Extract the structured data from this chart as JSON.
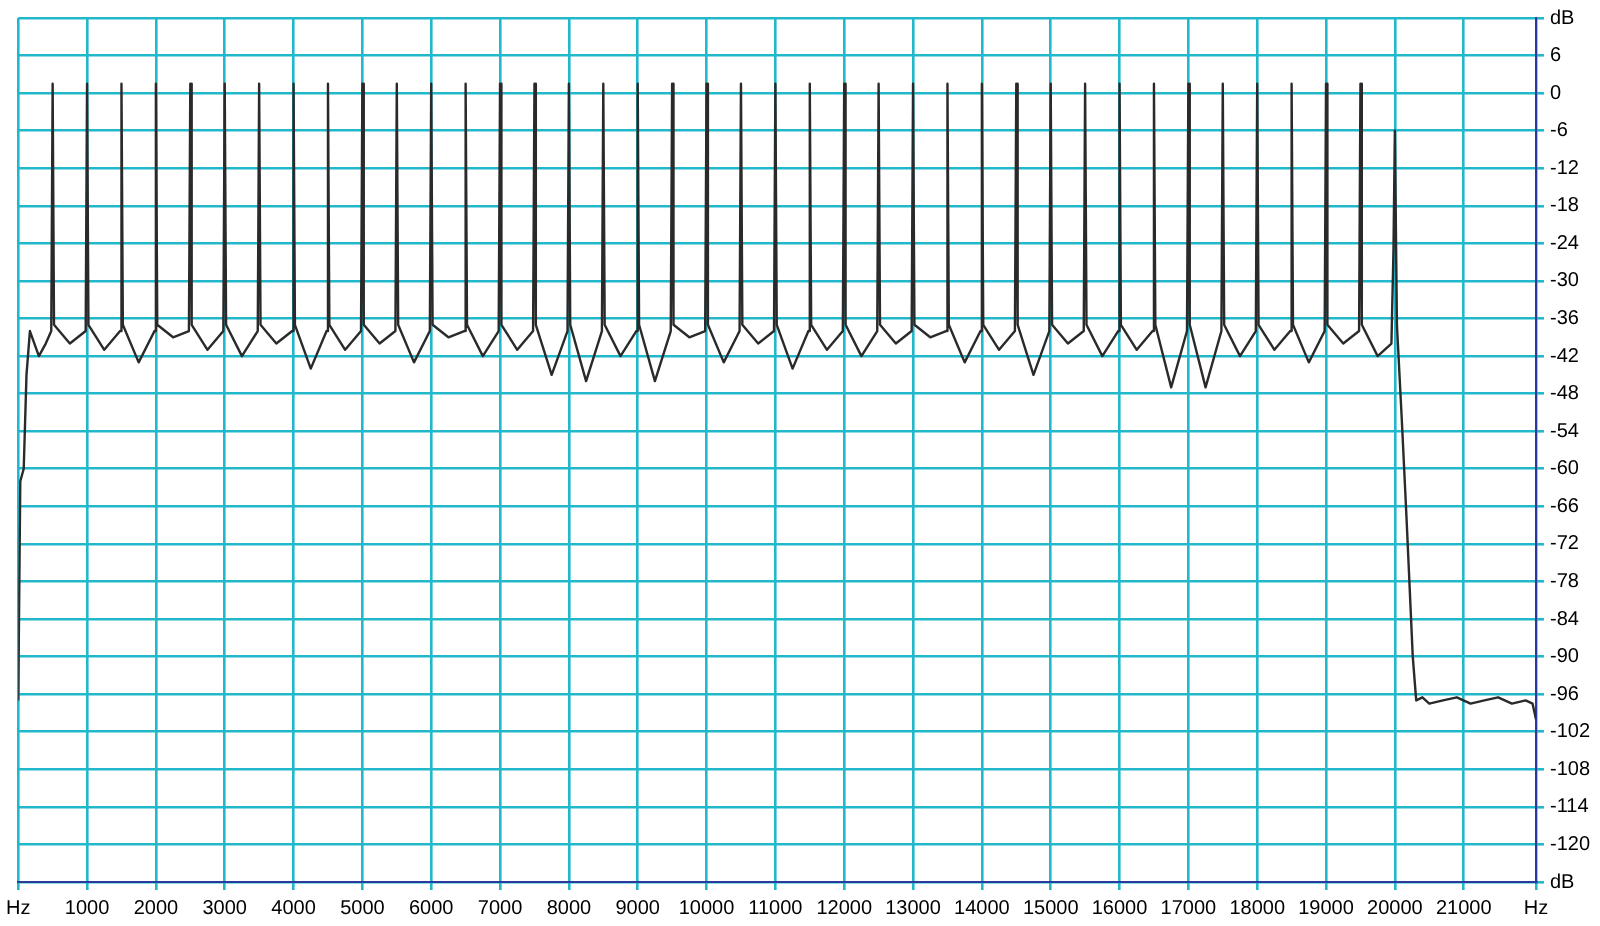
{
  "chart_data": {
    "type": "line",
    "xlim": [
      0,
      22050
    ],
    "ylim": [
      -126,
      12
    ],
    "xticks": [
      {
        "value": 0,
        "label": "Hz"
      },
      1000,
      2000,
      3000,
      4000,
      5000,
      6000,
      7000,
      8000,
      9000,
      10000,
      11000,
      12000,
      13000,
      14000,
      15000,
      16000,
      17000,
      18000,
      19000,
      20000,
      21000,
      {
        "value": 22050,
        "label": "Hz"
      }
    ],
    "yticks": [
      {
        "value": 12,
        "label": "dB"
      },
      6,
      0,
      -6,
      -12,
      -18,
      -24,
      -30,
      -36,
      -42,
      -48,
      -54,
      -60,
      -66,
      -72,
      -78,
      -84,
      -90,
      -96,
      -102,
      -108,
      -114,
      -120,
      {
        "value": -126,
        "label": "dB"
      }
    ],
    "grid": true,
    "legend": false,
    "marker": "none",
    "line_style": "solid",
    "series": [
      {
        "color": "#2a2a2a",
        "x": [
          0,
          30,
          80,
          120,
          170,
          300,
          400,
          480,
          500,
          520,
          750,
          980,
          1000,
          1020,
          1250,
          1480,
          1500,
          1520,
          1750,
          1980,
          2000,
          2020,
          2250,
          2480,
          2500,
          2520,
          2750,
          2980,
          3000,
          3020,
          3250,
          3480,
          3500,
          3520,
          3750,
          3980,
          4000,
          4020,
          4250,
          4480,
          4500,
          4520,
          4750,
          4980,
          5000,
          5020,
          5250,
          5480,
          5500,
          5520,
          5750,
          5980,
          6000,
          6020,
          6250,
          6480,
          6500,
          6520,
          6750,
          6980,
          7000,
          7020,
          7250,
          7480,
          7500,
          7520,
          7750,
          7980,
          8000,
          8020,
          8250,
          8480,
          8500,
          8520,
          8750,
          8980,
          9000,
          9020,
          9250,
          9480,
          9500,
          9520,
          9750,
          9980,
          10000,
          10020,
          10250,
          10480,
          10500,
          10520,
          10750,
          10980,
          11000,
          11020,
          11250,
          11480,
          11500,
          11520,
          11750,
          11980,
          12000,
          12020,
          12250,
          12480,
          12500,
          12520,
          12750,
          12980,
          13000,
          13020,
          13250,
          13480,
          13500,
          13520,
          13750,
          13980,
          14000,
          14020,
          14250,
          14480,
          14500,
          14520,
          14750,
          14980,
          15000,
          15020,
          15250,
          15480,
          15500,
          15520,
          15750,
          15980,
          16000,
          16020,
          16250,
          16480,
          16500,
          16520,
          16750,
          16980,
          17000,
          17020,
          17250,
          17480,
          17500,
          17520,
          17750,
          17980,
          18000,
          18020,
          18250,
          18480,
          18500,
          18520,
          18750,
          18980,
          19000,
          19020,
          19250,
          19480,
          19500,
          19520,
          19750,
          19950,
          19980,
          20000,
          20030,
          20100,
          20170,
          20260,
          20310,
          20400,
          20500,
          20700,
          20900,
          21100,
          21300,
          21500,
          21700,
          21900,
          22000,
          22050
        ],
        "values": [
          -97,
          -62,
          -60,
          -45,
          -38,
          -42,
          -40,
          -38,
          1.5,
          -37,
          -40,
          -38,
          1.5,
          -37,
          -41,
          -38,
          1.5,
          -37,
          -43,
          -38,
          1.5,
          -37,
          -39,
          -38,
          1.5,
          -37,
          -41,
          -38,
          1.5,
          -37,
          -42,
          -38,
          1.5,
          -37,
          -40,
          -38,
          1.5,
          -37,
          -44,
          -38,
          1.5,
          -37,
          -41,
          -38,
          1.5,
          -37,
          -40,
          -38,
          1.5,
          -37,
          -43,
          -38,
          1.5,
          -37,
          -39,
          -38,
          1.5,
          -37,
          -42,
          -38,
          1.5,
          -37,
          -41,
          -38,
          1.5,
          -37,
          -45,
          -38,
          1.5,
          -37,
          -46,
          -38,
          1.5,
          -37,
          -42,
          -38,
          1.5,
          -37,
          -46,
          -38,
          1.5,
          -37,
          -39,
          -38,
          1.5,
          -37,
          -43,
          -38,
          1.5,
          -37,
          -40,
          -38,
          1.5,
          -37,
          -44,
          -38,
          1.5,
          -37,
          -41,
          -38,
          1.5,
          -37,
          -42,
          -38,
          1.5,
          -37,
          -40,
          -38,
          1.5,
          -37,
          -39,
          -38,
          1.5,
          -37,
          -43,
          -38,
          1.5,
          -37,
          -41,
          -38,
          1.5,
          -37,
          -45,
          -38,
          1.5,
          -37,
          -40,
          -38,
          1.5,
          -37,
          -42,
          -38,
          1.5,
          -37,
          -41,
          -38,
          1.5,
          -37,
          -47,
          -38,
          1.5,
          -37,
          -47,
          -38,
          1.5,
          -37,
          -42,
          -38,
          1.5,
          -37,
          -41,
          -38,
          1.5,
          -37,
          -43,
          -38,
          1.5,
          -37,
          -40,
          -38,
          1.5,
          -37,
          -42,
          -40,
          -25,
          -6,
          -37,
          -52,
          -68,
          -90,
          -97,
          -96.5,
          -97.5,
          -97,
          -96.5,
          -97.5,
          -97,
          -96.5,
          -97.5,
          -97,
          -97.5,
          -100
        ]
      }
    ]
  }
}
